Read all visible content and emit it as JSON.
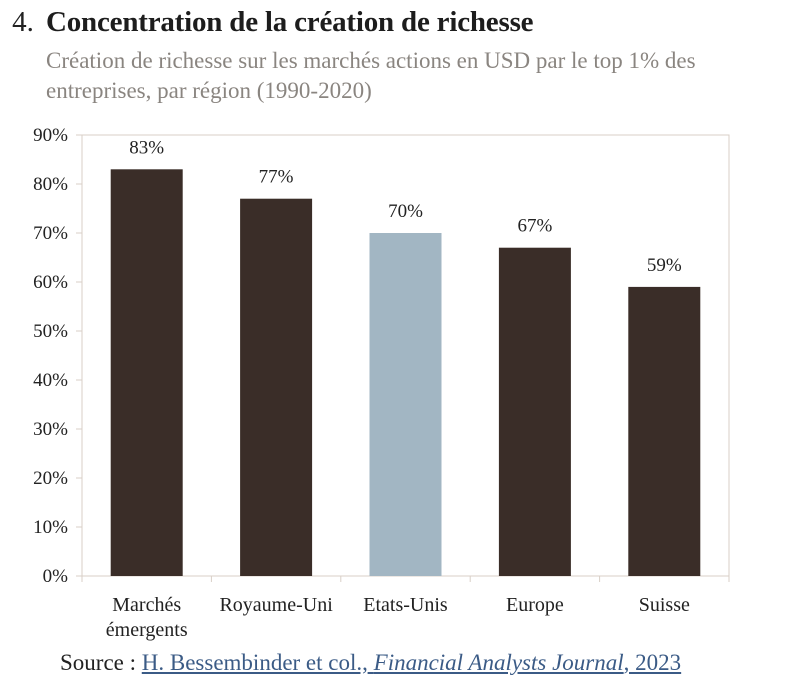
{
  "header": {
    "number": "4.",
    "title": "Concentration de la création de richesse",
    "subtitle": "Création de richesse sur les marchés actions en USD par le top 1% des entreprises, par région (1990-2020)"
  },
  "source": {
    "label": "Source :",
    "authors": "H. Bessembinder et col.,",
    "journal": "Financial Analysts Journal",
    "year": ", 2023"
  },
  "colors": {
    "bar": "#3a2d28",
    "highlight": "#a2b6c3",
    "axis": "#d9cfc7"
  },
  "chart_data": {
    "type": "bar",
    "categories": [
      "Marchés émergents",
      "Royaume-Uni",
      "Etats-Unis",
      "Europe",
      "Suisse"
    ],
    "category_lines": [
      [
        "Marchés",
        "émergents"
      ],
      [
        "Royaume-Uni"
      ],
      [
        "Etats-Unis"
      ],
      [
        "Europe"
      ],
      [
        "Suisse"
      ]
    ],
    "values": [
      83,
      77,
      70,
      67,
      59
    ],
    "value_labels": [
      "83%",
      "77%",
      "70%",
      "67%",
      "59%"
    ],
    "highlight_index": 2,
    "ylim": [
      0,
      90
    ],
    "yticks": [
      0,
      10,
      20,
      30,
      40,
      50,
      60,
      70,
      80,
      90
    ],
    "ytick_labels": [
      "0%",
      "10%",
      "20%",
      "30%",
      "40%",
      "50%",
      "60%",
      "70%",
      "80%",
      "90%"
    ],
    "grid": false
  }
}
